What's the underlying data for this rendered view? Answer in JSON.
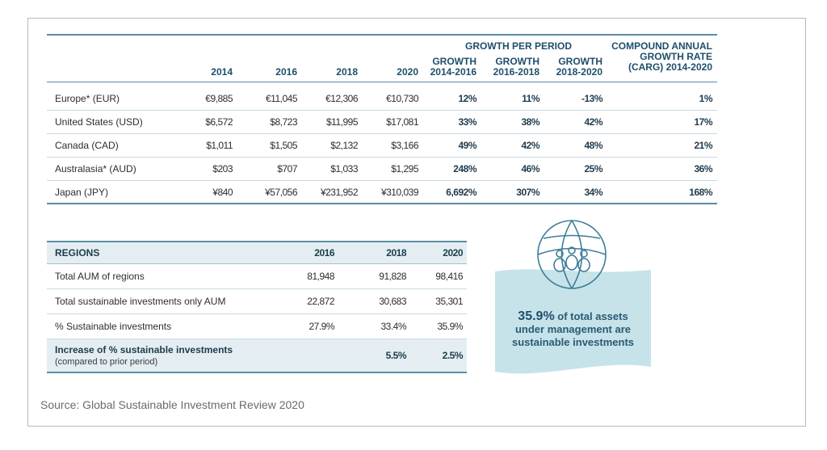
{
  "growth_table": {
    "header": {
      "group_label": "GROWTH PER PERIOD",
      "years": [
        "2014",
        "2016",
        "2018",
        "2020"
      ],
      "growth_cols": [
        {
          "line1": "GROWTH",
          "line2": "2014-2016"
        },
        {
          "line1": "GROWTH",
          "line2": "2016-2018"
        },
        {
          "line1": "GROWTH",
          "line2": "2018-2020"
        }
      ],
      "cagr_lines": [
        "COMPOUND ANNUAL",
        "GROWTH RATE",
        "(CARG) 2014-2020"
      ]
    },
    "rows": [
      {
        "label": "Europe* (EUR)",
        "values": [
          "€9,885",
          "€11,045",
          "€12,306",
          "€10,730"
        ],
        "growth": [
          "12%",
          "11%",
          "-13%"
        ],
        "cagr": "1%"
      },
      {
        "label": "United States (USD)",
        "values": [
          "$6,572",
          "$8,723",
          "$11,995",
          "$17,081"
        ],
        "growth": [
          "33%",
          "38%",
          "42%"
        ],
        "cagr": "17%"
      },
      {
        "label": "Canada (CAD)",
        "values": [
          "$1,011",
          "$1,505",
          "$2,132",
          "$3,166"
        ],
        "growth": [
          "49%",
          "42%",
          "48%"
        ],
        "cagr": "21%"
      },
      {
        "label": "Australasia* (AUD)",
        "values": [
          "$203",
          "$707",
          "$1,033",
          "$1,295"
        ],
        "growth": [
          "248%",
          "46%",
          "25%"
        ],
        "cagr": "36%"
      },
      {
        "label": "Japan (JPY)",
        "values": [
          "¥840",
          "¥57,056",
          "¥231,952",
          "¥310,039"
        ],
        "growth": [
          "6,692%",
          "307%",
          "34%"
        ],
        "cagr": "168%"
      }
    ]
  },
  "regions_table": {
    "header": {
      "label": "REGIONS",
      "years": [
        "2016",
        "2018",
        "2020"
      ]
    },
    "rows": [
      {
        "label": "Total AUM of regions",
        "values": [
          "81,948",
          "91,828",
          "98,416"
        ]
      },
      {
        "label": "Total sustainable investments only AUM",
        "values": [
          "22,872",
          "30,683",
          "35,301"
        ]
      },
      {
        "label": "% Sustainable investments",
        "values": [
          "27.9%",
          "33.4%",
          "35.9%"
        ]
      }
    ],
    "last_row": {
      "label": "Increase of % sustainable investments",
      "sublabel": "(compared to prior period)",
      "values": [
        "",
        "5.5%",
        "2.5%"
      ]
    }
  },
  "callout": {
    "highlight": "35.9%",
    "line1_rest": " of total assets",
    "line2": "under management are",
    "line3": "sustainable investments",
    "icon": "globe-people-icon",
    "colors": {
      "wave": "#c5e3e9",
      "ink": "#1f4e6b"
    }
  },
  "source": "Source: Global Sustainable Investment Review 2020"
}
